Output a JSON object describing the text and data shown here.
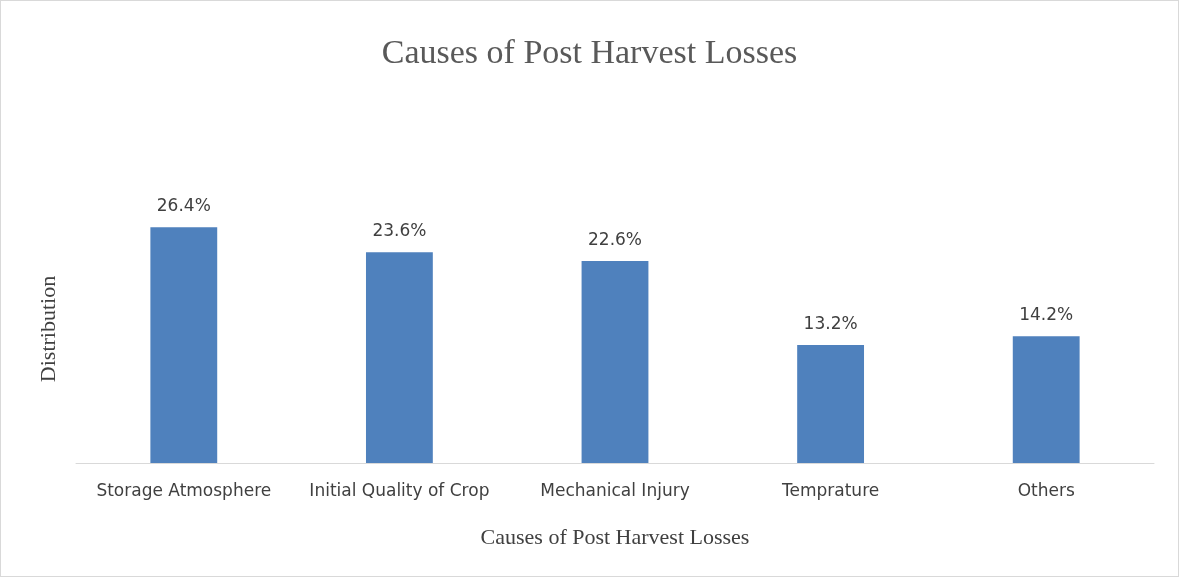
{
  "chart_data": {
    "type": "bar",
    "title": "Causes of Post Harvest Losses",
    "xlabel": "Causes of Post Harvest Losses",
    "ylabel": "Distribution",
    "categories": [
      "Storage Atmosphere",
      "Initial Quality of Crop",
      "Mechanical Injury",
      "Temprature",
      "Others"
    ],
    "values": [
      26.4,
      23.6,
      22.6,
      13.2,
      14.2
    ],
    "value_labels": [
      "26.4%",
      "23.6%",
      "22.6%",
      "13.2%",
      "14.2%"
    ],
    "color": "#4f81bd"
  }
}
